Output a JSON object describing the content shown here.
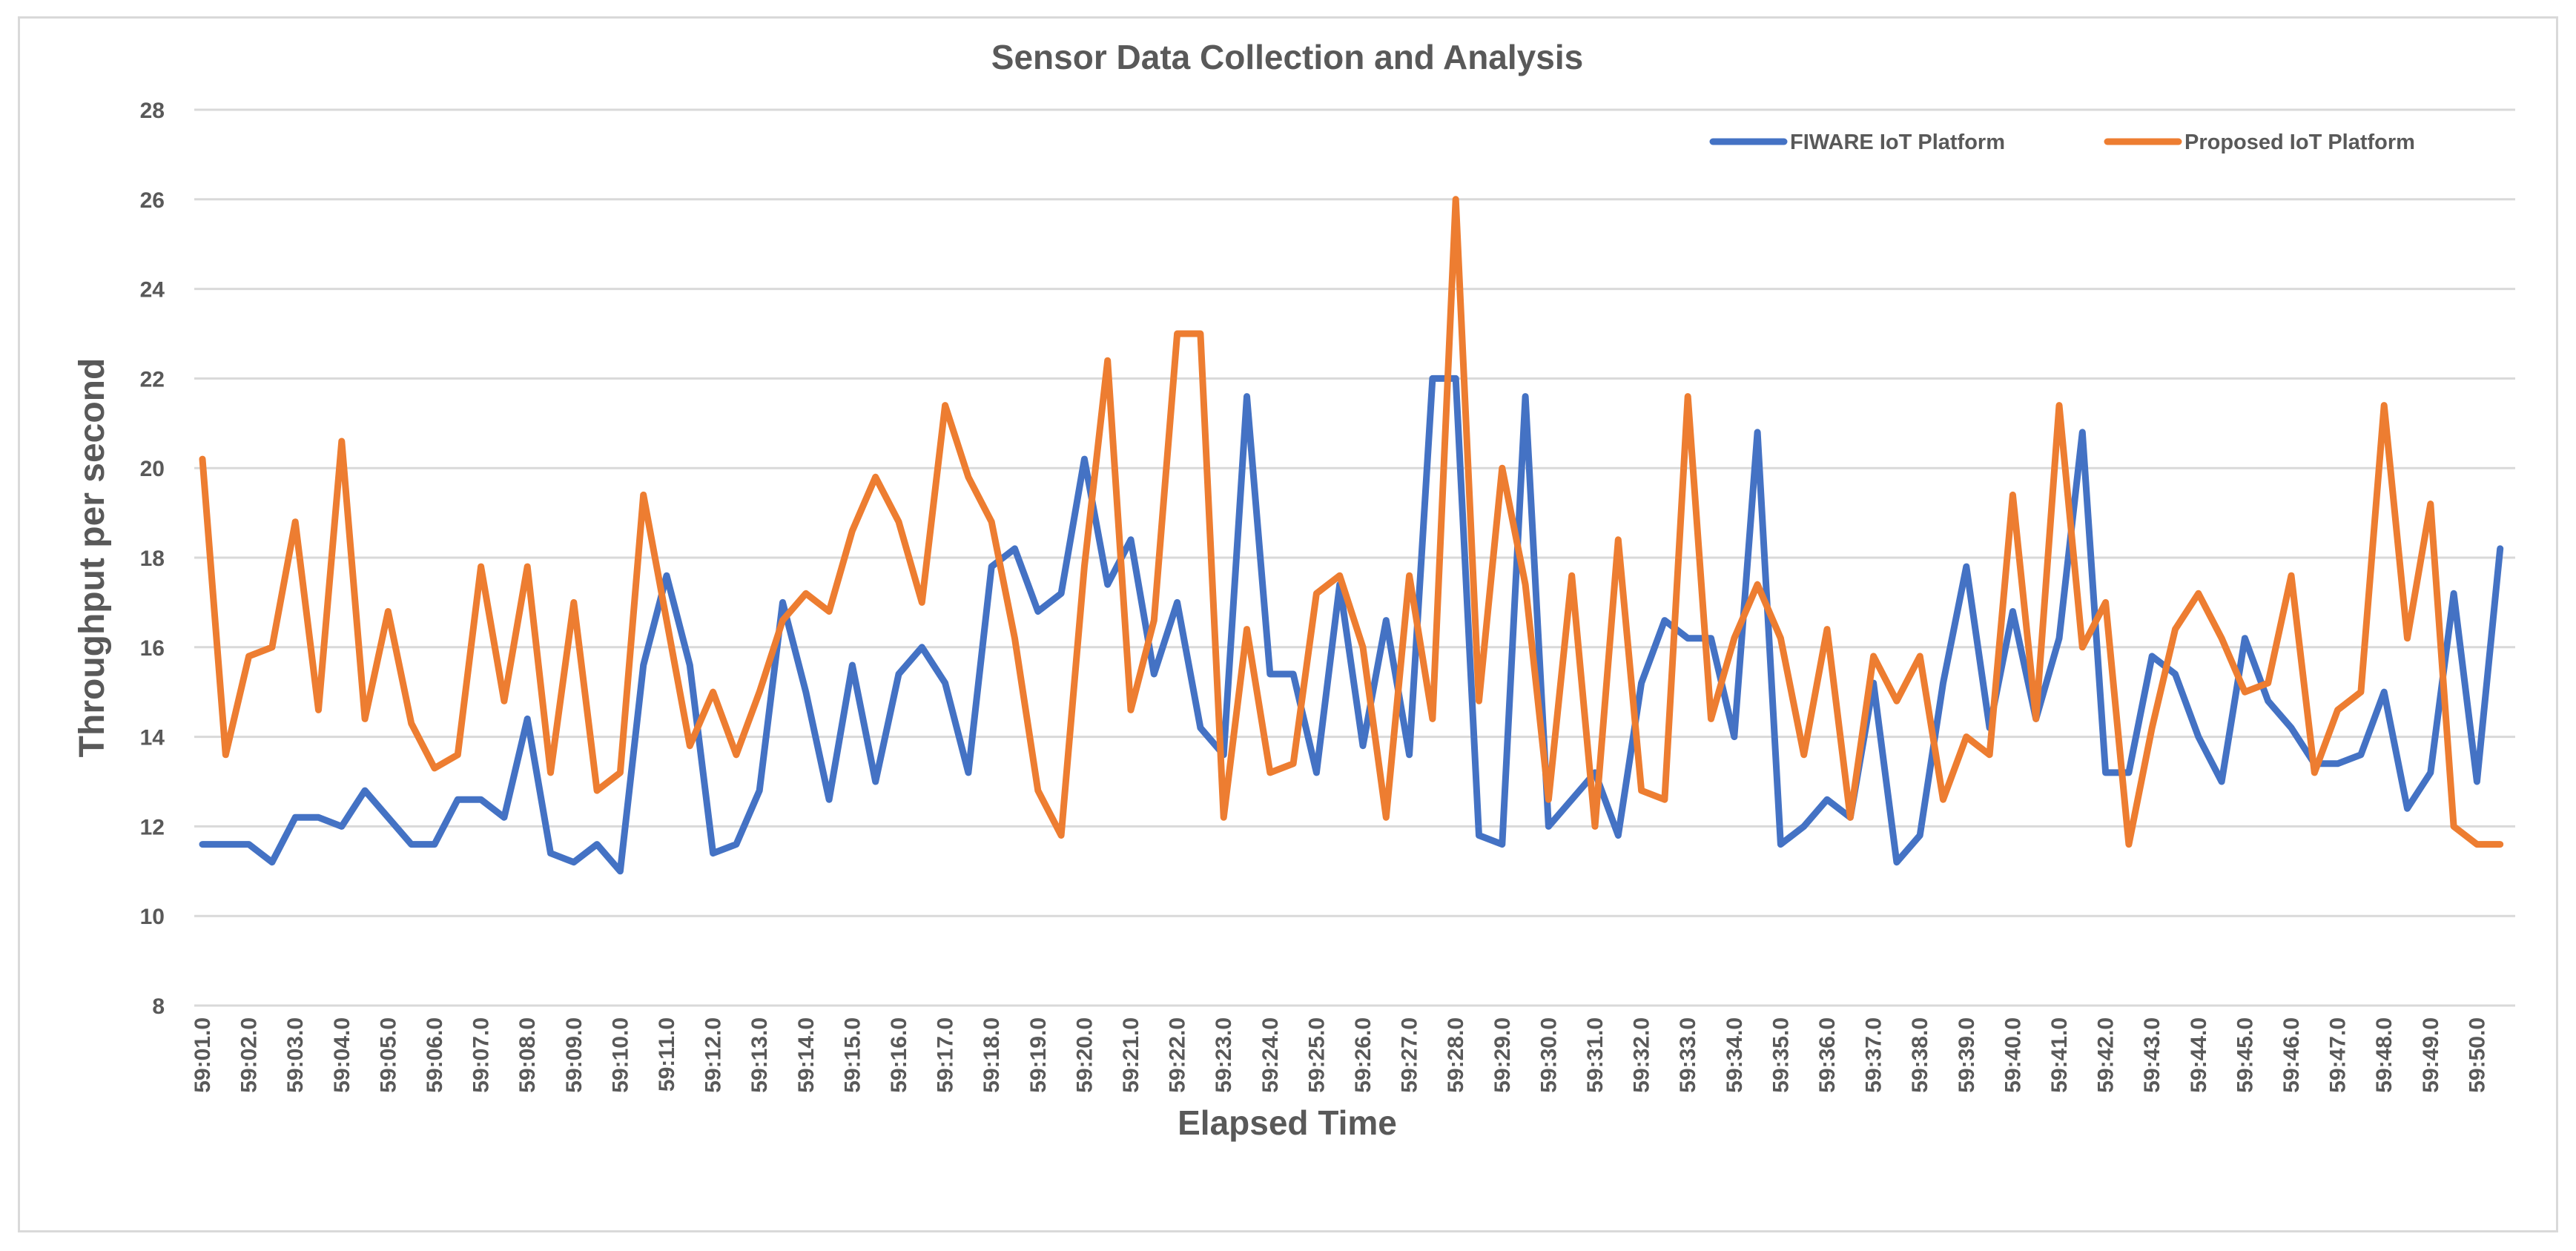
{
  "chart_data": {
    "type": "line",
    "title": "Sensor Data Collection and Analysis",
    "xlabel": "Elapsed Time",
    "ylabel": "Throughput per second",
    "ylim": [
      8,
      28
    ],
    "yticks": [
      8,
      10,
      12,
      14,
      16,
      18,
      20,
      22,
      24,
      26,
      28
    ],
    "grid": true,
    "legend_position": "top-right",
    "x_tick_labels": [
      "59:01.0",
      "59:02.0",
      "59:03.0",
      "59:04.0",
      "59:05.0",
      "59:06.0",
      "59:07.0",
      "59:08.0",
      "59:09.0",
      "59:10.0",
      "59:11.0",
      "59:12.0",
      "59:13.0",
      "59:14.0",
      "59:15.0",
      "59:16.0",
      "59:17.0",
      "59:18.0",
      "59:19.0",
      "59:20.0",
      "59:21.0",
      "59:22.0",
      "59:23.0",
      "59:24.0",
      "59:25.0",
      "59:26.0",
      "59:27.0",
      "59:28.0",
      "59:29.0",
      "59:30.0",
      "59:31.0",
      "59:32.0",
      "59:33.0",
      "59:34.0",
      "59:35.0",
      "59:36.0",
      "59:37.0",
      "59:38.0",
      "59:39.0",
      "59:40.0",
      "59:41.0",
      "59:42.0",
      "59:43.0",
      "59:44.0",
      "59:45.0",
      "59:46.0",
      "59:47.0",
      "59:48.0",
      "59:49.0",
      "59:50.0"
    ],
    "points_per_tick": 2,
    "series": [
      {
        "name": "FIWARE IoT Platform",
        "color": "#4472C4",
        "values": [
          11.6,
          11.6,
          11.6,
          11.2,
          12.2,
          12.2,
          12.0,
          12.8,
          12.2,
          11.6,
          11.6,
          12.6,
          12.6,
          12.2,
          14.4,
          11.4,
          11.2,
          11.6,
          11.0,
          15.6,
          17.6,
          15.6,
          11.4,
          11.6,
          12.8,
          17.0,
          15.0,
          12.6,
          15.6,
          13.0,
          15.4,
          16.0,
          15.2,
          13.2,
          17.8,
          18.2,
          16.8,
          17.2,
          20.2,
          17.4,
          18.4,
          15.4,
          17.0,
          14.2,
          13.6,
          21.6,
          15.4,
          15.4,
          13.2,
          17.4,
          13.8,
          16.6,
          13.6,
          22.0,
          22.0,
          11.8,
          11.6,
          21.6,
          12.0,
          12.6,
          13.2,
          11.8,
          15.2,
          16.6,
          16.2,
          16.2,
          14.0,
          20.8,
          11.6,
          12.0,
          12.6,
          12.2,
          15.2,
          11.2,
          11.8,
          15.2,
          17.8,
          14.2,
          16.8,
          14.4,
          16.2,
          20.8,
          13.2,
          13.2,
          15.8,
          15.4,
          14.0,
          13.0,
          16.2,
          14.8,
          14.2,
          13.4,
          13.4,
          13.6,
          15.0,
          12.4,
          13.2,
          17.2,
          13.0,
          18.2
        ]
      },
      {
        "name": "Proposed IoT Platform",
        "color": "#ED7D31",
        "values": [
          20.2,
          13.6,
          15.8,
          16.0,
          18.8,
          14.6,
          20.6,
          14.4,
          16.8,
          14.3,
          13.3,
          13.6,
          17.8,
          14.8,
          17.8,
          13.2,
          17.0,
          12.8,
          13.2,
          19.4,
          16.6,
          13.8,
          15.0,
          13.6,
          15.0,
          16.6,
          17.2,
          16.8,
          18.6,
          19.8,
          18.8,
          17.0,
          21.4,
          19.8,
          18.8,
          16.2,
          12.8,
          11.8,
          17.8,
          22.4,
          14.6,
          16.6,
          23.0,
          23.0,
          12.2,
          16.4,
          13.2,
          13.4,
          17.2,
          17.6,
          16.0,
          12.2,
          17.6,
          14.4,
          26.0,
          14.8,
          20.0,
          17.4,
          12.6,
          17.6,
          12.0,
          18.4,
          12.8,
          12.6,
          21.6,
          14.4,
          16.2,
          17.4,
          16.2,
          13.6,
          16.4,
          12.2,
          15.8,
          14.8,
          15.8,
          12.6,
          14.0,
          13.6,
          19.4,
          14.4,
          21.4,
          16.0,
          17.0,
          11.6,
          14.2,
          16.4,
          17.2,
          16.2,
          15.0,
          15.2,
          17.6,
          13.2,
          14.6,
          15.0,
          21.4,
          16.2,
          19.2,
          12.0,
          11.6,
          11.6
        ]
      }
    ]
  }
}
